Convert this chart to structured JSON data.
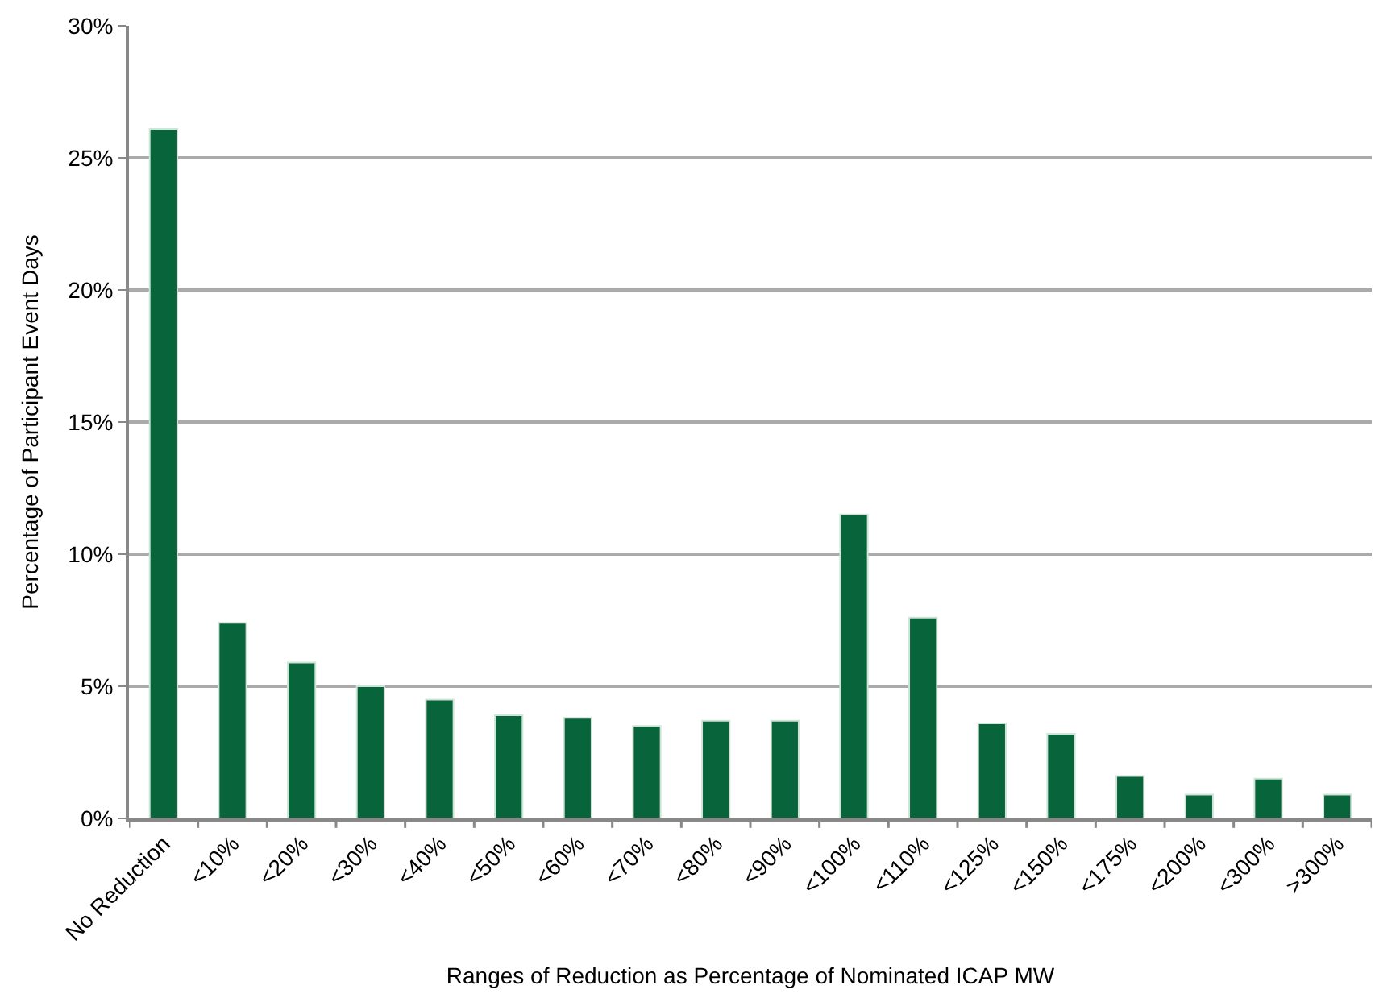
{
  "chart_data": {
    "type": "bar",
    "xlabel": "Ranges of Reduction as Percentage of Nominated ICAP MW",
    "ylabel": "Percentage of Participant Event Days",
    "categories": [
      "No Reduction",
      "<10%",
      "<20%",
      "<30%",
      "<40%",
      "<50%",
      "<60%",
      "<70%",
      "<80%",
      "<90%",
      "<100%",
      "<110%",
      "<125%",
      "<150%",
      "<175%",
      "<200%",
      "<300%",
      ">300%"
    ],
    "values": [
      26.1,
      7.4,
      5.9,
      5.0,
      4.5,
      3.9,
      3.8,
      3.5,
      3.7,
      3.7,
      11.5,
      7.6,
      3.6,
      3.2,
      1.6,
      0.9,
      1.5,
      0.9
    ],
    "color": "#08643a",
    "ylim": [
      0,
      30
    ],
    "yticks": [
      {
        "value": 0,
        "label": "0%"
      },
      {
        "value": 5,
        "label": "5%"
      },
      {
        "value": 10,
        "label": "10%"
      },
      {
        "value": 15,
        "label": "15%"
      },
      {
        "value": 20,
        "label": "20%"
      },
      {
        "value": 25,
        "label": "25%"
      },
      {
        "value": 30,
        "label": "30%"
      }
    ],
    "grid": "y"
  }
}
